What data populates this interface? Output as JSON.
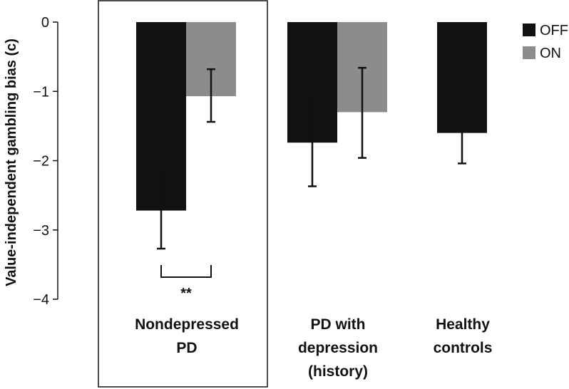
{
  "chart_data": {
    "type": "bar",
    "ylabel": "Value-independent gambling bias (c)",
    "ylim": [
      -4,
      0
    ],
    "yticks": [
      0,
      -1,
      -2,
      -3,
      -4
    ],
    "ytick_labels": [
      "0",
      "−1",
      "−2",
      "−3",
      "−4"
    ],
    "categories": [
      [
        "Nondepressed",
        "PD"
      ],
      [
        "PD with",
        "depression",
        "(history)"
      ],
      [
        "Healthy",
        "controls"
      ]
    ],
    "series": [
      {
        "name": "OFF",
        "color": "#111111",
        "values": [
          -2.72,
          -1.74,
          -1.6
        ],
        "err_low": [
          -3.27,
          -2.37,
          -2.04
        ],
        "err_high": [
          -2.15,
          -1.1,
          -1.16
        ]
      },
      {
        "name": "ON",
        "color": "#8c8c8c",
        "values": [
          -1.07,
          -1.3,
          null
        ],
        "err_low": [
          -1.44,
          -1.96,
          null
        ],
        "err_high": [
          -0.68,
          -0.66,
          null
        ]
      }
    ],
    "legend_position": "top-right",
    "grid": false,
    "highlight_box_category": 0,
    "annotations": [
      {
        "category": 0,
        "text": "**"
      }
    ]
  }
}
